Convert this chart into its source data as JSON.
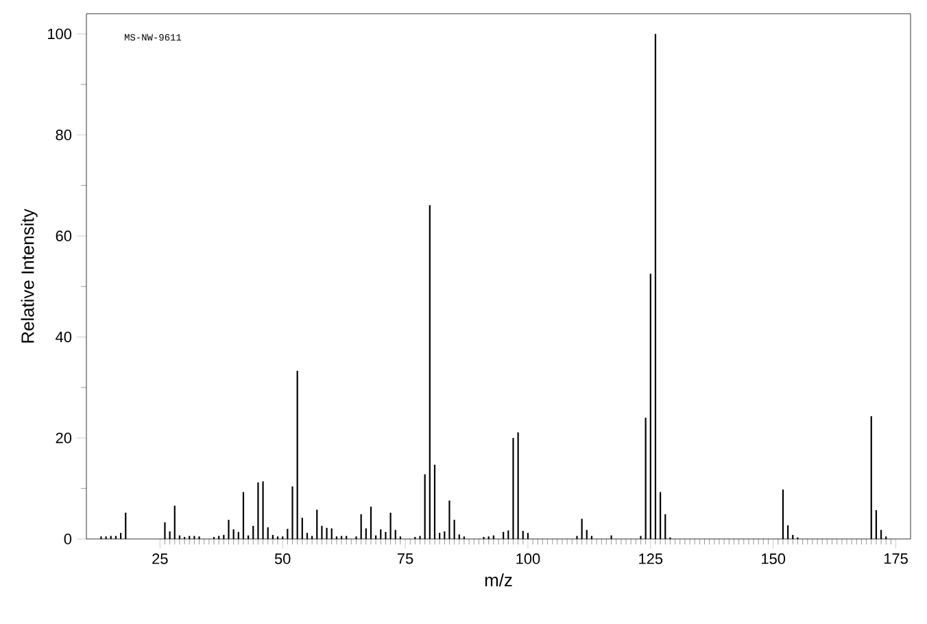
{
  "chart_data": {
    "type": "bar",
    "xlabel": "m/z",
    "ylabel": "Relative Intensity",
    "annotations": [
      "MS-NW-9611"
    ],
    "color": "#000000",
    "x": [
      13,
      14,
      15,
      16,
      17,
      18,
      26,
      27,
      28,
      29,
      30,
      31,
      32,
      33,
      36,
      37,
      38,
      39,
      40,
      41,
      42,
      43,
      44,
      45,
      46,
      47,
      48,
      49,
      50,
      51,
      52,
      53,
      54,
      55,
      56,
      57,
      58,
      59,
      60,
      61,
      62,
      63,
      65,
      66,
      67,
      68,
      69,
      70,
      71,
      72,
      73,
      74,
      77,
      78,
      79,
      80,
      81,
      82,
      83,
      84,
      85,
      86,
      87,
      91,
      92,
      93,
      95,
      96,
      97,
      98,
      99,
      100,
      110,
      111,
      112,
      113,
      117,
      123,
      124,
      125,
      126,
      127,
      128,
      129,
      152,
      153,
      154,
      155,
      170,
      171,
      172,
      173
    ],
    "values": [
      0.5,
      0.5,
      0.6,
      0.6,
      1.2,
      5.2,
      3.3,
      1.5,
      6.6,
      0.7,
      0.4,
      0.6,
      0.6,
      0.5,
      0.4,
      0.6,
      0.8,
      3.8,
      1.9,
      1.4,
      9.3,
      0.7,
      2.6,
      11.2,
      11.4,
      2.3,
      0.8,
      0.5,
      0.5,
      2.0,
      10.4,
      33.3,
      4.2,
      1.2,
      0.6,
      5.8,
      2.6,
      2.2,
      2.1,
      0.5,
      0.6,
      0.6,
      0.5,
      4.9,
      2.1,
      6.4,
      0.7,
      1.9,
      1.4,
      5.2,
      1.8,
      0.5,
      0.4,
      0.6,
      12.8,
      66.1,
      14.7,
      1.2,
      1.5,
      7.6,
      3.8,
      0.9,
      0.5,
      0.4,
      0.5,
      0.7,
      1.4,
      1.7,
      20.0,
      21.1,
      1.6,
      1.2,
      0.6,
      4.0,
      1.8,
      0.6,
      0.7,
      0.6,
      24.0,
      52.5,
      100,
      9.3,
      4.9,
      0.3,
      9.8,
      2.7,
      0.8,
      0.3,
      24.3,
      5.7,
      1.8,
      0.5
    ],
    "xlim": [
      10,
      178
    ],
    "ylim": [
      0,
      104
    ],
    "xticks": [
      25,
      50,
      75,
      100,
      125,
      150,
      175
    ],
    "yticks": [
      0,
      20,
      40,
      60,
      80,
      100
    ]
  }
}
